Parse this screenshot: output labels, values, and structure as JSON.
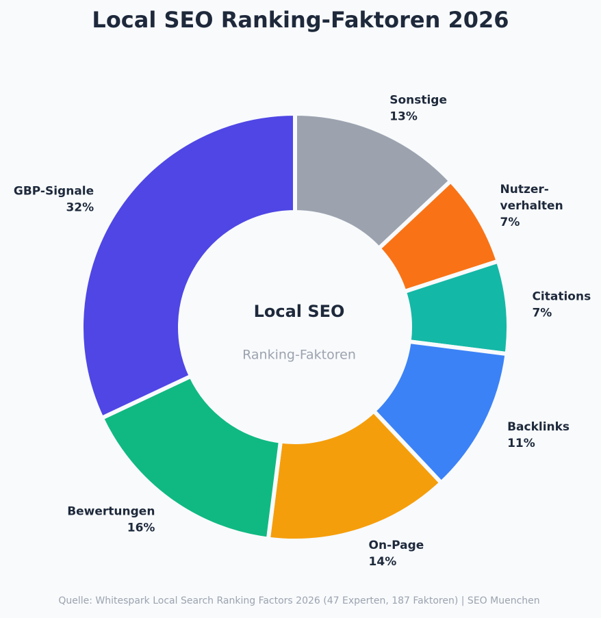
{
  "chart_data": {
    "type": "donut",
    "title": "Local SEO Ranking-Faktoren 2026",
    "center_title": "Local SEO",
    "center_subtitle": "Ranking-Faktoren",
    "source": "Quelle: Whitespark Local Search Ranking Factors 2026 (47 Experten, 187 Faktoren) | SEO Muenchen",
    "categories": [
      "Sonstige",
      "Nutzer-\nverhalten",
      "Citations",
      "Backlinks",
      "On-Page",
      "Bewertungen",
      "GBP-Signale"
    ],
    "values": [
      13,
      7,
      7,
      11,
      14,
      16,
      32
    ],
    "value_labels": [
      "13%",
      "7%",
      "7%",
      "11%",
      "14%",
      "16%",
      "32%"
    ],
    "colors": [
      "#9ca3af",
      "#f97316",
      "#14b8a6",
      "#3b82f6",
      "#f59e0b",
      "#10b981",
      "#4f46e5"
    ]
  }
}
